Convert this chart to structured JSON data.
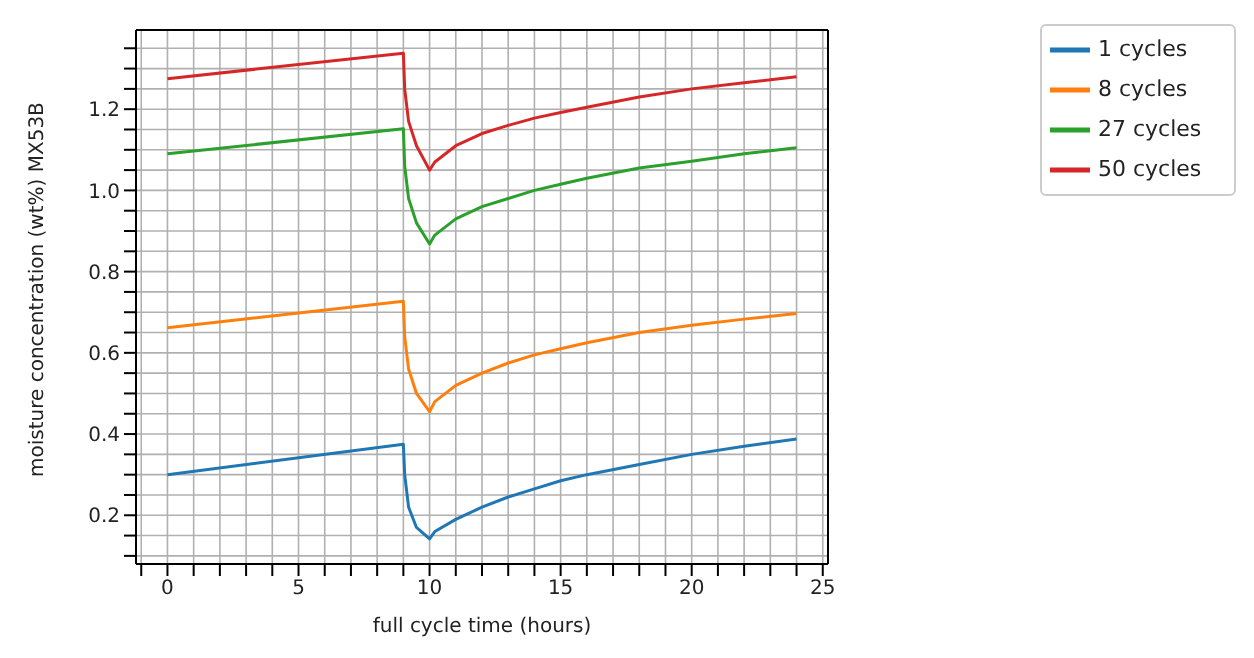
{
  "chart_data": {
    "type": "line",
    "xlabel": "full cycle time (hours)",
    "ylabel": "moisture concentration (wt%) MX53B",
    "x": [
      0,
      9,
      9.05,
      9.2,
      9.5,
      10,
      10.2,
      11,
      12,
      13,
      14,
      15,
      16,
      18,
      20,
      22,
      24
    ],
    "series": [
      {
        "name": "1 cycles",
        "color": "#1f77b4",
        "values": [
          0.3,
          0.375,
          0.3,
          0.22,
          0.17,
          0.142,
          0.16,
          0.19,
          0.22,
          0.245,
          0.265,
          0.285,
          0.3,
          0.325,
          0.35,
          0.37,
          0.388
        ]
      },
      {
        "name": "8 cycles",
        "color": "#ff7f0e",
        "values": [
          0.662,
          0.727,
          0.64,
          0.56,
          0.5,
          0.455,
          0.48,
          0.52,
          0.55,
          0.575,
          0.595,
          0.61,
          0.625,
          0.65,
          0.668,
          0.683,
          0.697
        ]
      },
      {
        "name": "27 cycles",
        "color": "#2ca02c",
        "values": [
          1.09,
          1.152,
          1.06,
          0.98,
          0.92,
          0.868,
          0.89,
          0.93,
          0.96,
          0.98,
          1.0,
          1.015,
          1.03,
          1.055,
          1.072,
          1.09,
          1.105
        ]
      },
      {
        "name": "50 cycles",
        "color": "#d62728",
        "values": [
          1.275,
          1.338,
          1.25,
          1.17,
          1.11,
          1.05,
          1.07,
          1.11,
          1.14,
          1.16,
          1.178,
          1.192,
          1.205,
          1.23,
          1.25,
          1.265,
          1.28
        ]
      }
    ],
    "xlim": [
      -1.2,
      25.2
    ],
    "xticks": [
      {
        "value": -1,
        "label": null
      },
      0,
      {
        "value": 1,
        "label": null
      },
      {
        "value": 2,
        "label": null
      },
      {
        "value": 3,
        "label": null
      },
      {
        "value": 4,
        "label": null
      },
      5,
      {
        "value": 6,
        "label": null
      },
      {
        "value": 7,
        "label": null
      },
      {
        "value": 8,
        "label": null
      },
      {
        "value": 9,
        "label": null
      },
      10,
      {
        "value": 11,
        "label": null
      },
      {
        "value": 12,
        "label": null
      },
      {
        "value": 13,
        "label": null
      },
      {
        "value": 14,
        "label": null
      },
      15,
      {
        "value": 16,
        "label": null
      },
      {
        "value": 17,
        "label": null
      },
      {
        "value": 18,
        "label": null
      },
      {
        "value": 19,
        "label": null
      },
      20,
      {
        "value": 21,
        "label": null
      },
      {
        "value": 22,
        "label": null
      },
      {
        "value": 23,
        "label": null
      },
      {
        "value": 24,
        "label": null
      },
      25
    ],
    "ylim": [
      0.08,
      1.395
    ],
    "yticks": [
      {
        "value": 0.1,
        "label": null
      },
      {
        "value": 0.15,
        "label": null
      },
      {
        "value": 0.2,
        "label": "0.2"
      },
      {
        "value": 0.25,
        "label": null
      },
      {
        "value": 0.3,
        "label": null
      },
      {
        "value": 0.35,
        "label": null
      },
      {
        "value": 0.4,
        "label": "0.4"
      },
      {
        "value": 0.45,
        "label": null
      },
      {
        "value": 0.5,
        "label": null
      },
      {
        "value": 0.55,
        "label": null
      },
      {
        "value": 0.6,
        "label": "0.6"
      },
      {
        "value": 0.65,
        "label": null
      },
      {
        "value": 0.7,
        "label": null
      },
      {
        "value": 0.75,
        "label": null
      },
      {
        "value": 0.8,
        "label": "0.8"
      },
      {
        "value": 0.85,
        "label": null
      },
      {
        "value": 0.9,
        "label": null
      },
      {
        "value": 0.95,
        "label": null
      },
      {
        "value": 1.0,
        "label": "1.0"
      },
      {
        "value": 1.05,
        "label": null
      },
      {
        "value": 1.1,
        "label": null
      },
      {
        "value": 1.15,
        "label": null
      },
      {
        "value": 1.2,
        "label": "1.2"
      },
      {
        "value": 1.25,
        "label": null
      },
      {
        "value": 1.3,
        "label": null
      },
      {
        "value": 1.35,
        "label": null
      }
    ],
    "grid": true,
    "legend": "right",
    "marker": "none",
    "line_style": "solid"
  }
}
